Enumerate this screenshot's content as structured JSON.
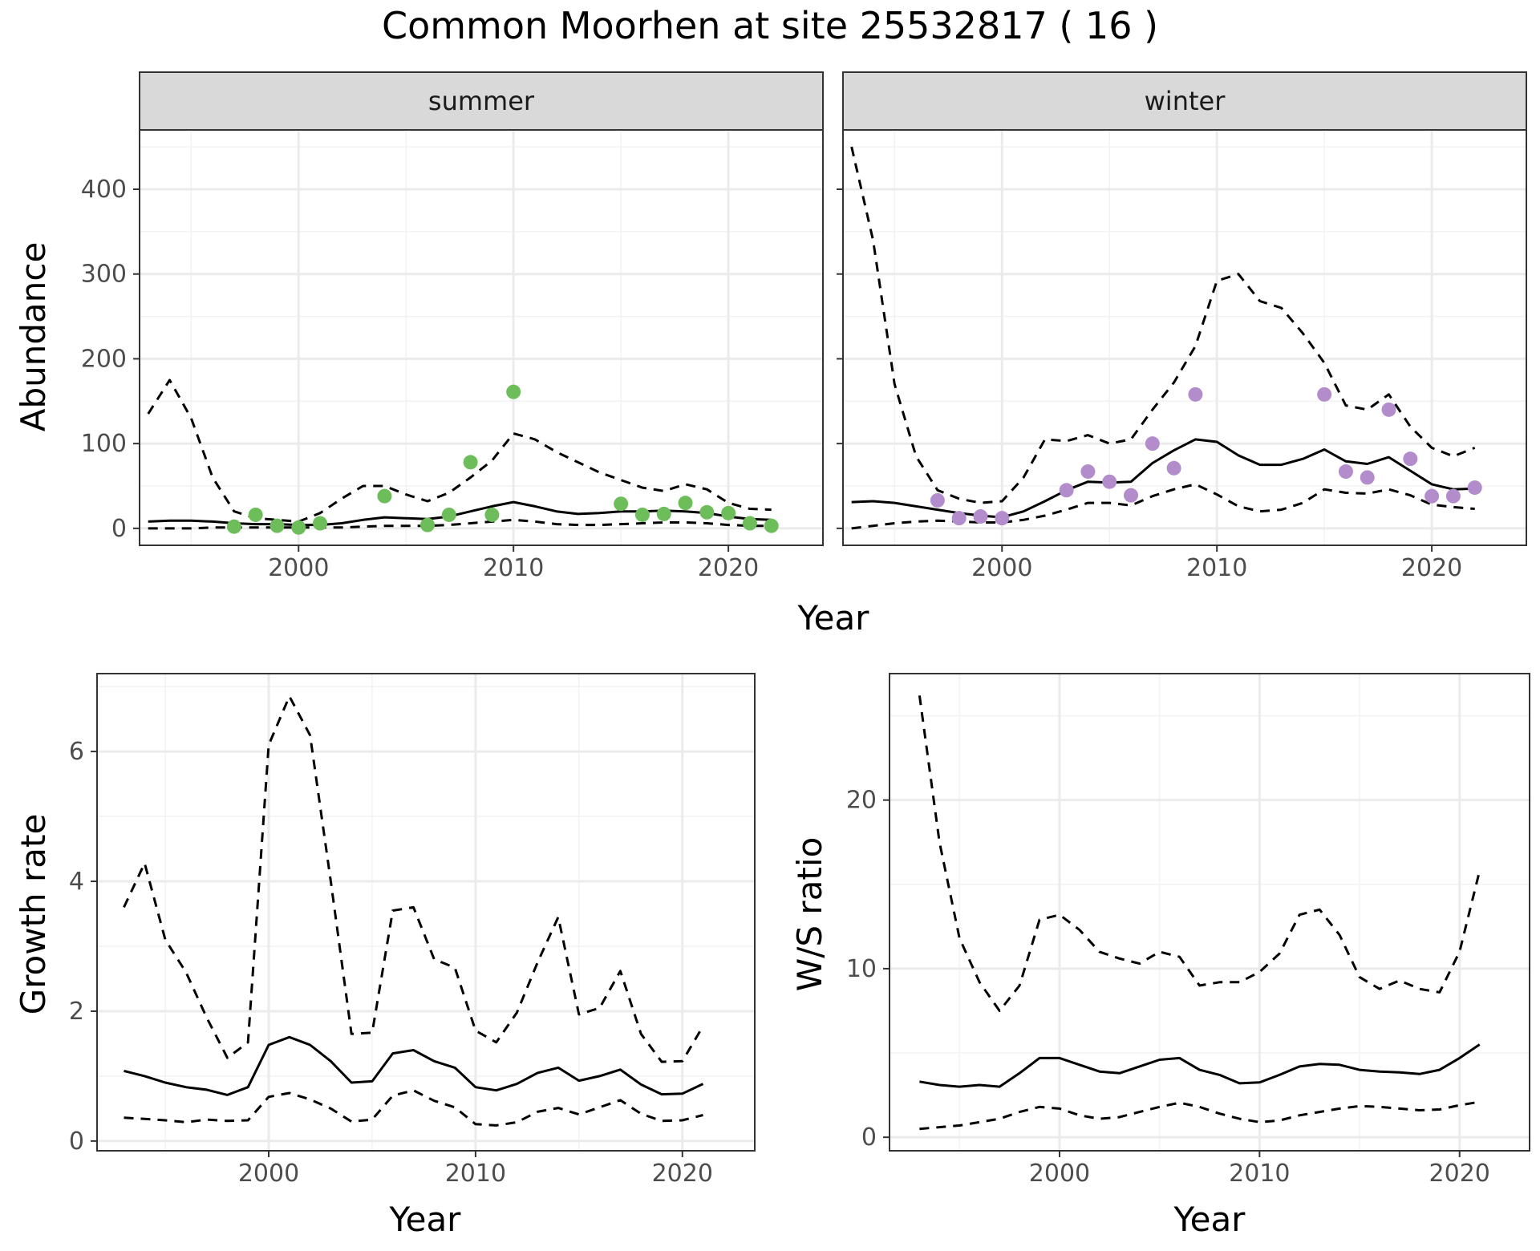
{
  "title": "Common Moorhen at site 25532817 ( 16 )",
  "colors": {
    "summer_points": "#6DBE5A",
    "winter_points": "#B38CCB",
    "lines": "#000000",
    "strip_bg": "#D9D9D9",
    "grid": "#EBEBEB"
  },
  "chart_data": [
    {
      "type": "line",
      "panel": "summer",
      "strip_label": "summer",
      "xlabel": "Year",
      "ylabel": "Abundance",
      "xlim": [
        1992.6,
        2024.4
      ],
      "ylim": [
        -20,
        470
      ],
      "xticks": [
        2000,
        2010,
        2020
      ],
      "yticks": [
        0,
        100,
        200,
        300,
        400
      ],
      "grid": true,
      "x": [
        1993,
        1994,
        1995,
        1996,
        1997,
        1998,
        1999,
        2000,
        2001,
        2002,
        2003,
        2004,
        2005,
        2006,
        2007,
        2008,
        2009,
        2010,
        2011,
        2012,
        2013,
        2014,
        2015,
        2016,
        2017,
        2018,
        2019,
        2020,
        2021,
        2022
      ],
      "series": [
        {
          "role": "fitted",
          "style": "solid",
          "values": [
            8,
            9,
            9,
            8,
            6,
            5,
            5,
            4,
            4,
            6,
            10,
            13,
            12,
            11,
            14,
            20,
            26,
            31,
            26,
            20,
            17,
            18,
            20,
            20,
            21,
            20,
            18,
            14,
            11,
            10
          ]
        },
        {
          "role": "upper",
          "style": "dashed",
          "values": [
            135,
            175,
            130,
            60,
            20,
            12,
            10,
            8,
            18,
            35,
            50,
            50,
            40,
            32,
            42,
            60,
            80,
            112,
            105,
            90,
            78,
            66,
            57,
            48,
            44,
            52,
            46,
            30,
            23,
            22
          ]
        },
        {
          "role": "lower",
          "style": "dashed",
          "values": [
            0,
            0,
            0,
            1,
            1,
            1,
            1,
            1,
            1,
            1,
            2,
            3,
            3,
            3,
            4,
            6,
            8,
            10,
            8,
            5,
            4,
            4,
            5,
            6,
            7,
            7,
            6,
            4,
            3,
            3
          ]
        }
      ],
      "points": {
        "x": [
          1997,
          1998,
          1999,
          2000,
          2001,
          2004,
          2006,
          2007,
          2008,
          2009,
          2010,
          2015,
          2016,
          2017,
          2018,
          2019,
          2020,
          2021,
          2022
        ],
        "y": [
          2,
          16,
          3,
          1,
          6,
          38,
          4,
          16,
          78,
          16,
          161,
          29,
          16,
          17,
          30,
          19,
          18,
          6,
          3
        ]
      }
    },
    {
      "type": "line",
      "panel": "winter",
      "strip_label": "winter",
      "xlabel": "Year",
      "ylabel": "Abundance",
      "xlim": [
        1992.6,
        2024.4
      ],
      "ylim": [
        -20,
        470
      ],
      "xticks": [
        2000,
        2010,
        2020
      ],
      "yticks": [
        0,
        100,
        200,
        300,
        400
      ],
      "grid": true,
      "x": [
        1993,
        1994,
        1995,
        1996,
        1997,
        1998,
        1999,
        2000,
        2001,
        2002,
        2003,
        2004,
        2005,
        2006,
        2007,
        2008,
        2009,
        2010,
        2011,
        2012,
        2013,
        2014,
        2015,
        2016,
        2017,
        2018,
        2019,
        2020,
        2021,
        2022
      ],
      "series": [
        {
          "role": "fitted",
          "style": "solid",
          "values": [
            31,
            32,
            30,
            26,
            22,
            18,
            15,
            13,
            20,
            32,
            45,
            55,
            54,
            55,
            77,
            92,
            105,
            102,
            86,
            75,
            75,
            82,
            93,
            79,
            76,
            84,
            68,
            52,
            46,
            47
          ]
        },
        {
          "role": "upper",
          "style": "dashed",
          "values": [
            450,
            340,
            170,
            85,
            45,
            35,
            30,
            32,
            60,
            105,
            103,
            110,
            100,
            105,
            140,
            172,
            215,
            292,
            300,
            268,
            260,
            230,
            195,
            145,
            140,
            158,
            120,
            95,
            85,
            95
          ]
        },
        {
          "role": "lower",
          "style": "dashed",
          "values": [
            0,
            3,
            6,
            8,
            9,
            8,
            7,
            7,
            10,
            15,
            22,
            30,
            30,
            27,
            38,
            46,
            52,
            40,
            26,
            20,
            22,
            30,
            46,
            42,
            41,
            46,
            39,
            28,
            25,
            23
          ]
        }
      ],
      "points": {
        "x": [
          1997,
          1998,
          1999,
          2000,
          2003,
          2004,
          2005,
          2006,
          2007,
          2008,
          2009,
          2015,
          2016,
          2017,
          2018,
          2019,
          2020,
          2021,
          2022
        ],
        "y": [
          33,
          12,
          14,
          12,
          45,
          67,
          55,
          39,
          100,
          71,
          158,
          158,
          67,
          60,
          140,
          82,
          38,
          38,
          48
        ]
      }
    },
    {
      "type": "line",
      "panel": "growth",
      "xlabel": "Year",
      "ylabel": "Growth rate",
      "xlim": [
        1991.7,
        2023.5
      ],
      "ylim": [
        -0.15,
        7.2
      ],
      "xticks": [
        2000,
        2010,
        2020
      ],
      "yticks": [
        0,
        2,
        4,
        6
      ],
      "grid": true,
      "x": [
        1993,
        1994,
        1995,
        1996,
        1997,
        1998,
        1999,
        2000,
        2001,
        2002,
        2003,
        2004,
        2005,
        2006,
        2007,
        2008,
        2009,
        2010,
        2011,
        2012,
        2013,
        2014,
        2015,
        2016,
        2017,
        2018,
        2019,
        2020,
        2021
      ],
      "series": [
        {
          "role": "fitted",
          "style": "solid",
          "values": [
            1.08,
            1.0,
            0.9,
            0.83,
            0.79,
            0.71,
            0.83,
            1.48,
            1.6,
            1.48,
            1.23,
            0.9,
            0.92,
            1.35,
            1.4,
            1.23,
            1.13,
            0.83,
            0.78,
            0.88,
            1.05,
            1.13,
            0.93,
            1.0,
            1.1,
            0.87,
            0.72,
            0.73,
            0.88
          ]
        },
        {
          "role": "upper",
          "style": "dashed",
          "values": [
            3.6,
            4.28,
            3.1,
            2.6,
            1.9,
            1.28,
            1.52,
            6.1,
            6.85,
            6.25,
            4.0,
            1.65,
            1.67,
            3.55,
            3.6,
            2.8,
            2.67,
            1.7,
            1.52,
            1.98,
            2.75,
            3.45,
            1.95,
            2.05,
            2.62,
            1.65,
            1.22,
            1.23,
            1.77
          ]
        },
        {
          "role": "lower",
          "style": "dashed",
          "values": [
            0.36,
            0.34,
            0.32,
            0.29,
            0.33,
            0.31,
            0.32,
            0.68,
            0.74,
            0.64,
            0.5,
            0.3,
            0.33,
            0.7,
            0.78,
            0.62,
            0.52,
            0.26,
            0.24,
            0.29,
            0.45,
            0.51,
            0.41,
            0.52,
            0.63,
            0.42,
            0.31,
            0.32,
            0.4
          ]
        }
      ]
    },
    {
      "type": "line",
      "panel": "ws-ratio",
      "xlabel": "Year",
      "ylabel": "W/S ratio",
      "xlim": [
        1991.5,
        2023.5
      ],
      "ylim": [
        -0.8,
        27.5
      ],
      "xticks": [
        2000,
        2010,
        2020
      ],
      "yticks": [
        0,
        10,
        20
      ],
      "grid": true,
      "x": [
        1993,
        1994,
        1995,
        1996,
        1997,
        1998,
        1999,
        2000,
        2001,
        2002,
        2003,
        2004,
        2005,
        2006,
        2007,
        2008,
        2009,
        2010,
        2011,
        2012,
        2013,
        2014,
        2015,
        2016,
        2017,
        2018,
        2019,
        2020,
        2021
      ],
      "series": [
        {
          "role": "fitted",
          "style": "solid",
          "values": [
            3.3,
            3.1,
            3.0,
            3.1,
            3.0,
            3.8,
            4.7,
            4.7,
            4.3,
            3.9,
            3.8,
            4.2,
            4.6,
            4.7,
            4.0,
            3.7,
            3.2,
            3.25,
            3.7,
            4.2,
            4.35,
            4.3,
            4.0,
            3.9,
            3.85,
            3.75,
            4.0,
            4.7,
            5.5
          ]
        },
        {
          "role": "upper",
          "style": "dashed",
          "values": [
            26.2,
            17.5,
            11.8,
            9.2,
            7.5,
            9.0,
            12.9,
            13.2,
            12.3,
            11.0,
            10.6,
            10.3,
            11.0,
            10.7,
            9.0,
            9.2,
            9.2,
            9.8,
            10.9,
            13.2,
            13.5,
            12.0,
            9.5,
            8.8,
            9.3,
            8.8,
            8.6,
            11.0,
            15.8
          ]
        },
        {
          "role": "lower",
          "style": "dashed",
          "values": [
            0.5,
            0.6,
            0.7,
            0.9,
            1.1,
            1.5,
            1.8,
            1.7,
            1.3,
            1.1,
            1.2,
            1.5,
            1.8,
            2.05,
            1.8,
            1.4,
            1.1,
            0.9,
            1.0,
            1.3,
            1.5,
            1.7,
            1.85,
            1.8,
            1.7,
            1.6,
            1.65,
            1.9,
            2.1
          ]
        }
      ]
    }
  ]
}
